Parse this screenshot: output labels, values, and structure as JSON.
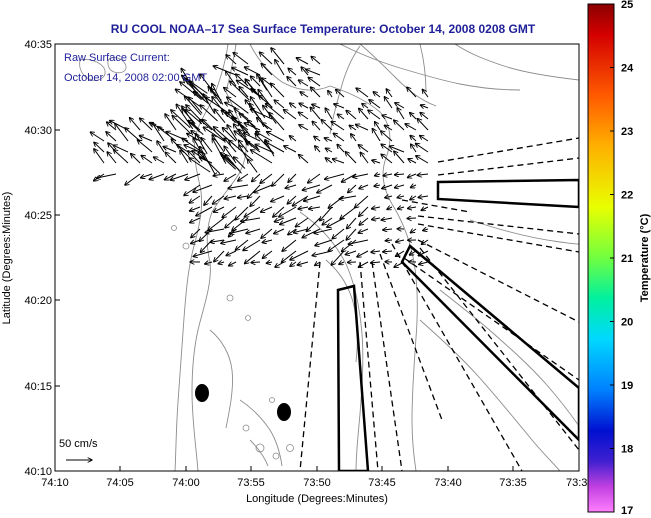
{
  "title": "RU COOL  NOAA–17  Sea Surface Temperature:  October 14, 2008 0208 GMT",
  "current_note": {
    "line1": "Raw Surface Current:",
    "line2": "October 14, 2008 02:00 GMT"
  },
  "scale_label": "50 cm/s",
  "axes": {
    "xlabel": "Longitude (Degrees:Minutes)",
    "ylabel": "Latitude (Degrees:Minutes)",
    "x_ticks": [
      "74:10",
      "74:05",
      "74:00",
      "73:55",
      "73:50",
      "73:45",
      "73:40",
      "73:35",
      "73:3"
    ],
    "y_ticks": [
      "40:35",
      "40:30",
      "40:25",
      "40:20",
      "40:15",
      "40:10"
    ]
  },
  "colorbar": {
    "label": "Temperature (°C)",
    "ticks": [
      "25",
      "24",
      "23",
      "22",
      "21",
      "20",
      "19",
      "18",
      "17"
    ],
    "range": [
      17,
      25
    ]
  },
  "colors": {
    "title": "#1f1f9a",
    "contour": "#8c8c8c",
    "vector": "#000000"
  }
}
